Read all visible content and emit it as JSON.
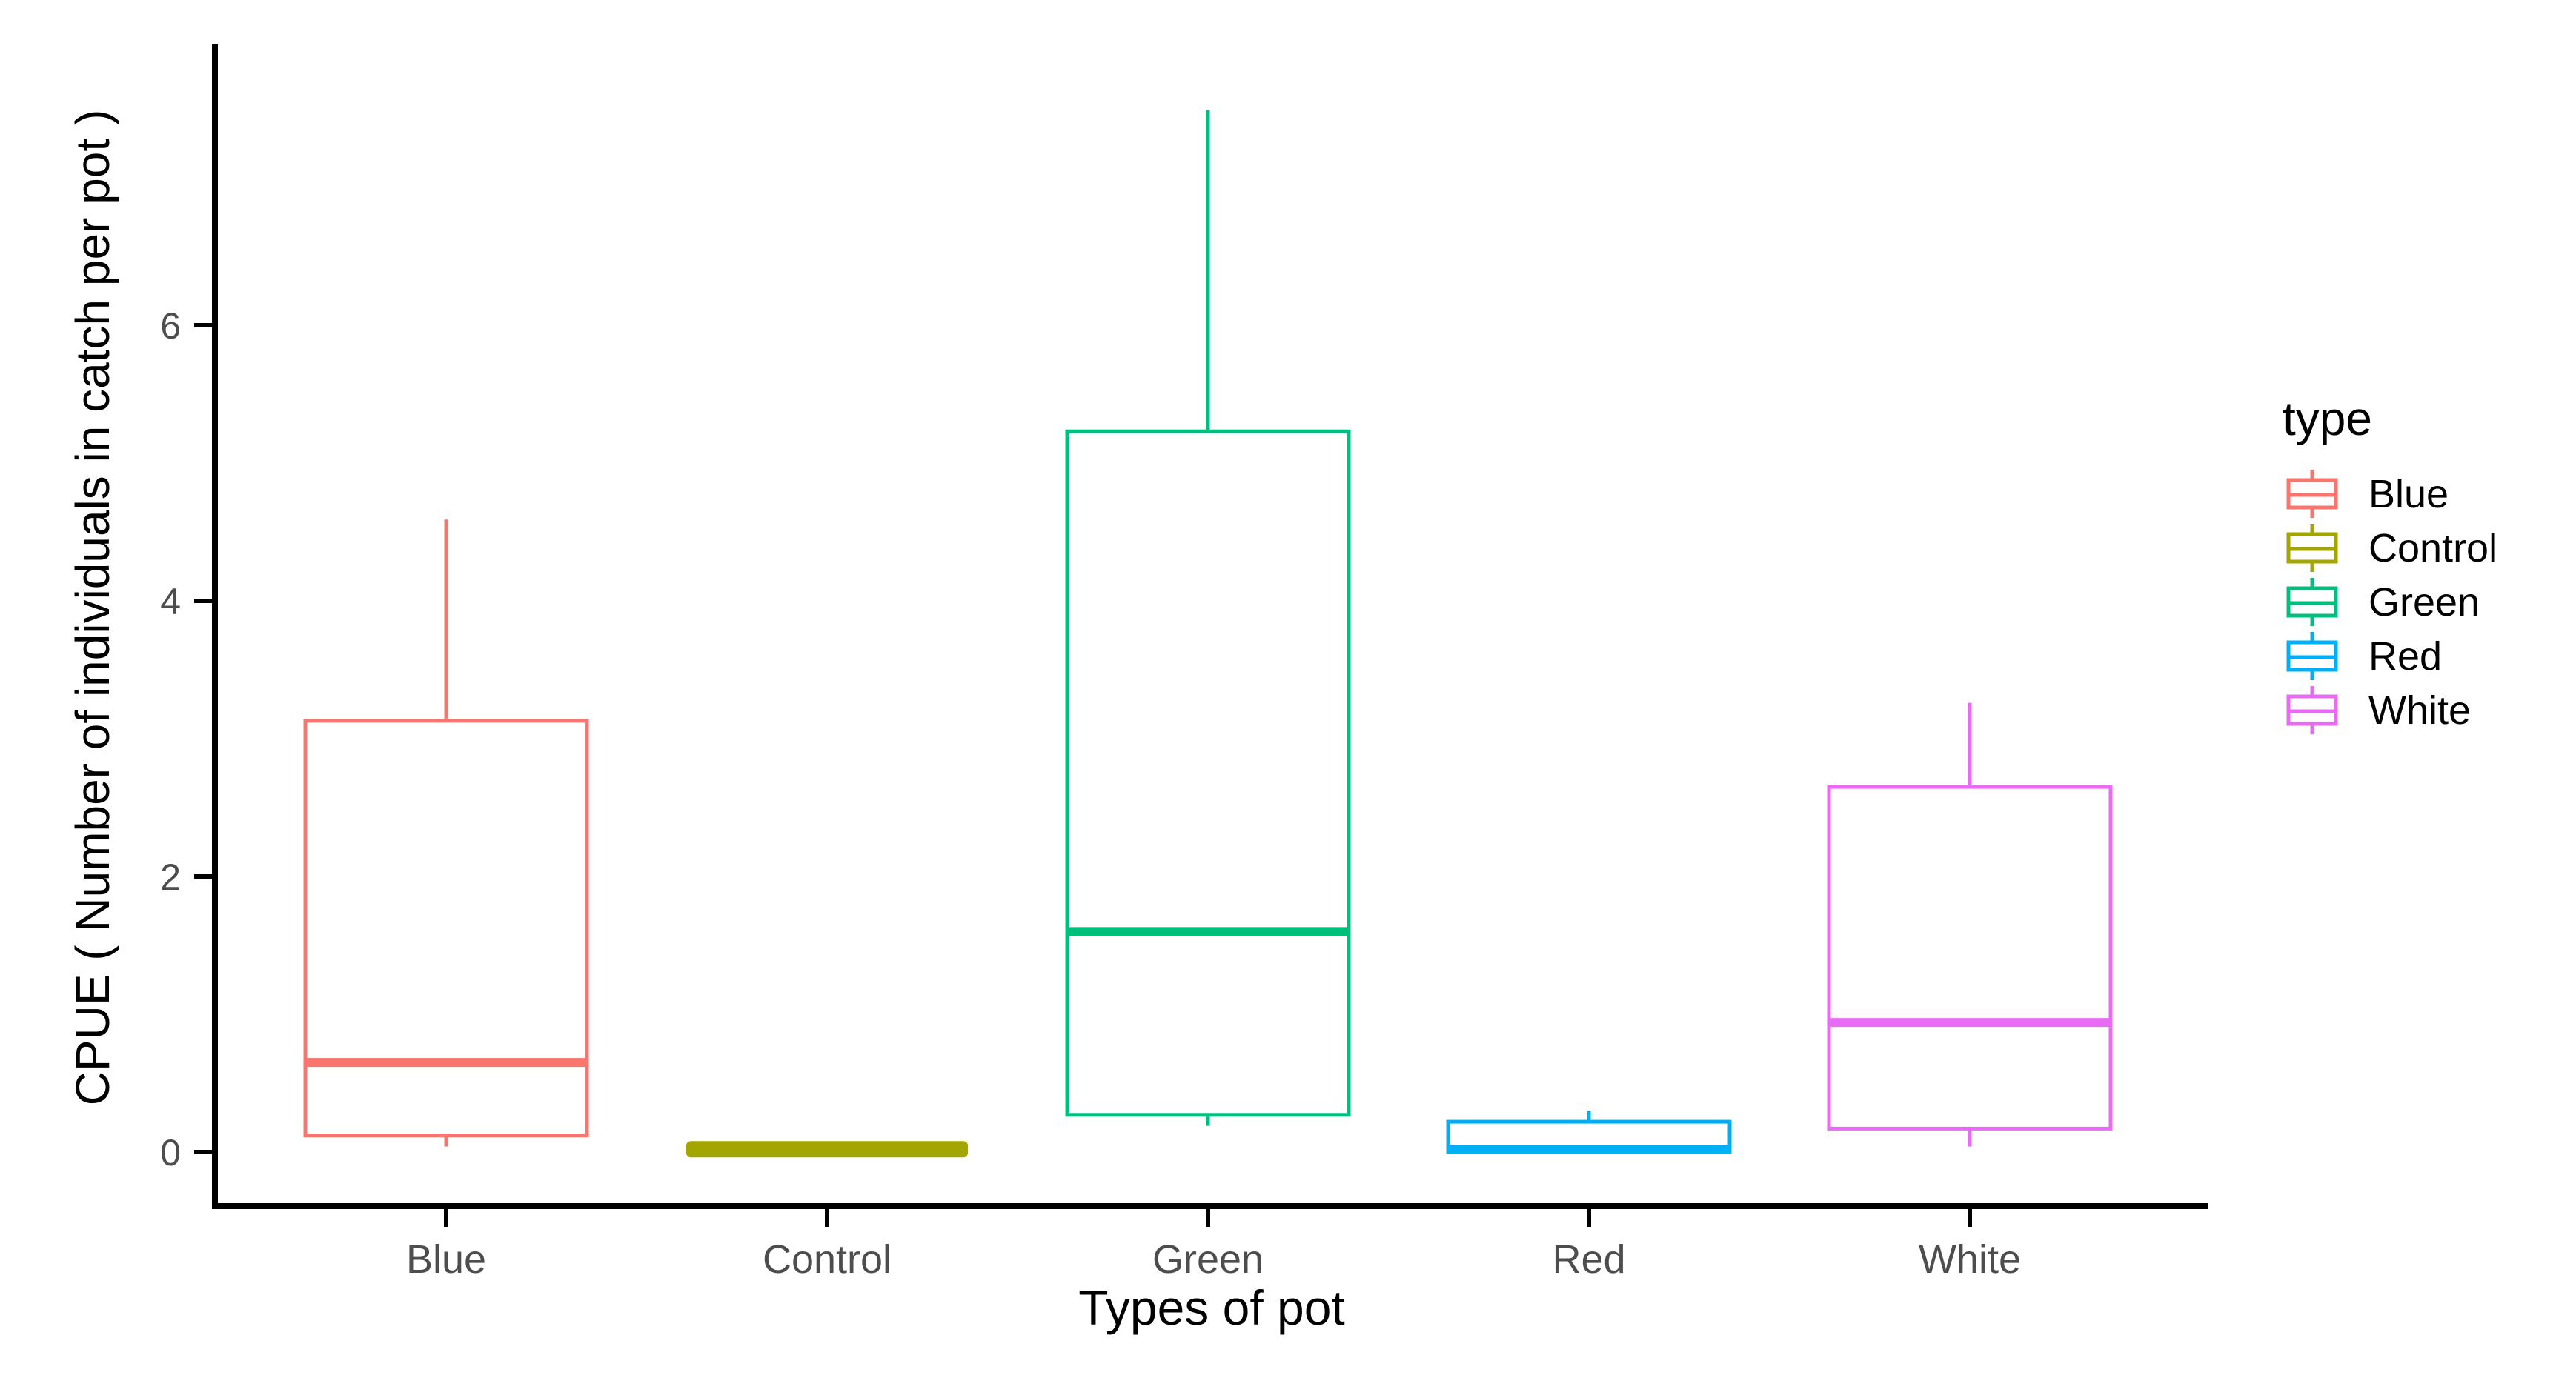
{
  "chart_data": {
    "type": "boxplot",
    "title": "",
    "xlabel": "Types of pot",
    "ylabel": "CPUE ( Number of individuals in catch per pot )",
    "categories": [
      "Blue",
      "Control",
      "Green",
      "Red",
      "White"
    ],
    "yticks": [
      0,
      2,
      4,
      6
    ],
    "ylim": [
      -0.4,
      8.0
    ],
    "grid": false,
    "tick_label_color": "#4D4D4D",
    "axis_color": "#000000",
    "boxes": [
      {
        "category": "Blue",
        "color": "#F8766D",
        "min": 0.04,
        "q1": 0.12,
        "median": 0.65,
        "q3": 3.13,
        "max": 4.59
      },
      {
        "category": "Control",
        "color": "#A3A500",
        "min": 0.02,
        "q1": 0.02,
        "median": 0.02,
        "q3": 0.02,
        "max": 0.02
      },
      {
        "category": "Green",
        "color": "#00BF7D",
        "min": 0.19,
        "q1": 0.27,
        "median": 1.6,
        "q3": 5.23,
        "max": 7.56
      },
      {
        "category": "Red",
        "color": "#00B0F6",
        "min": 0.0,
        "q1": 0.0,
        "median": 0.02,
        "q3": 0.22,
        "max": 0.3
      },
      {
        "category": "White",
        "color": "#E76BF3",
        "min": 0.04,
        "q1": 0.17,
        "median": 0.94,
        "q3": 2.65,
        "max": 3.26
      }
    ],
    "legend": {
      "title": "type",
      "position": "right",
      "items": [
        {
          "label": "Blue",
          "color": "#F8766D"
        },
        {
          "label": "Control",
          "color": "#A3A500"
        },
        {
          "label": "Green",
          "color": "#00BF7D"
        },
        {
          "label": "Red",
          "color": "#00B0F6"
        },
        {
          "label": "White",
          "color": "#E76BF3"
        }
      ]
    }
  }
}
